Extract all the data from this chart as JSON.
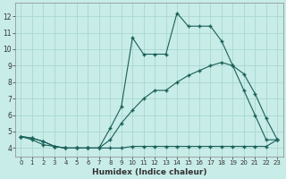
{
  "xlabel": "Humidex (Indice chaleur)",
  "xlim": [
    -0.5,
    23.5
  ],
  "ylim": [
    3.5,
    12.8
  ],
  "yticks": [
    4,
    5,
    6,
    7,
    8,
    9,
    10,
    11,
    12
  ],
  "xticks": [
    0,
    1,
    2,
    3,
    4,
    5,
    6,
    7,
    8,
    9,
    10,
    11,
    12,
    13,
    14,
    15,
    16,
    17,
    18,
    19,
    20,
    21,
    22,
    23
  ],
  "bg_color": "#c8ece8",
  "grid_color": "#a8d8d0",
  "line_color": "#1a5f58",
  "line1_x": [
    0,
    1,
    2,
    3,
    4,
    5,
    6,
    7,
    8,
    9,
    10,
    11,
    12,
    13,
    14,
    15,
    16,
    17,
    18,
    19,
    20,
    21,
    22,
    23
  ],
  "line1_y": [
    4.7,
    4.6,
    4.4,
    4.1,
    4.0,
    4.0,
    4.0,
    4.0,
    5.2,
    6.5,
    10.7,
    9.7,
    9.7,
    9.7,
    12.2,
    11.4,
    11.4,
    11.4,
    10.5,
    9.0,
    7.5,
    6.0,
    4.5,
    4.5
  ],
  "line2_x": [
    0,
    1,
    2,
    3,
    4,
    5,
    6,
    7,
    8,
    9,
    10,
    11,
    12,
    13,
    14,
    15,
    16,
    17,
    18,
    19,
    20,
    21,
    22,
    23
  ],
  "line2_y": [
    4.7,
    4.6,
    4.4,
    4.1,
    4.0,
    4.0,
    4.0,
    4.0,
    4.5,
    5.5,
    6.3,
    7.0,
    7.5,
    7.5,
    8.0,
    8.4,
    8.7,
    9.0,
    9.2,
    9.0,
    8.5,
    7.3,
    5.8,
    4.5
  ],
  "line3_x": [
    0,
    1,
    2,
    3,
    4,
    5,
    6,
    7,
    8,
    9,
    10,
    11,
    12,
    13,
    14,
    15,
    16,
    17,
    18,
    19,
    20,
    21,
    22,
    23
  ],
  "line3_y": [
    4.7,
    4.5,
    4.2,
    4.1,
    4.0,
    4.0,
    4.0,
    4.0,
    4.0,
    4.0,
    4.1,
    4.1,
    4.1,
    4.1,
    4.1,
    4.1,
    4.1,
    4.1,
    4.1,
    4.1,
    4.1,
    4.1,
    4.1,
    4.5
  ]
}
